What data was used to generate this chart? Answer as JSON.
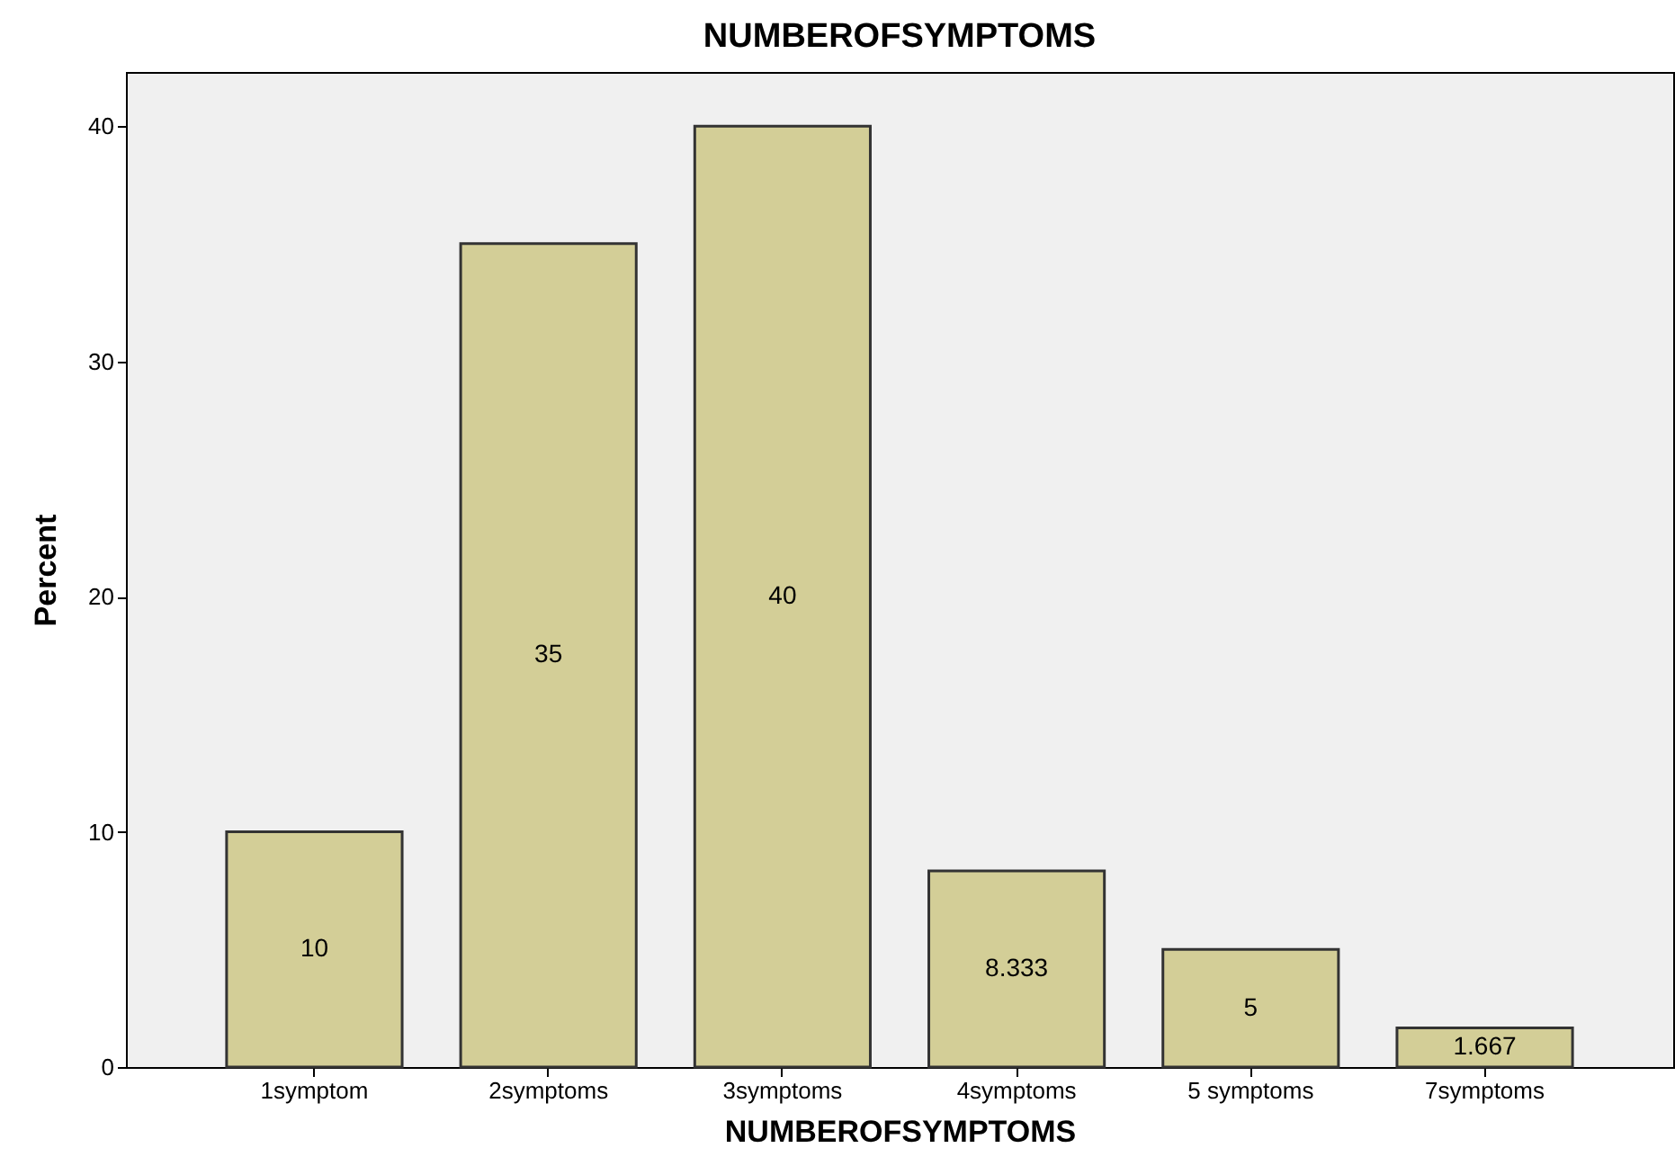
{
  "chart_data": {
    "type": "bar",
    "title": "NUMBEROFSYMPTOMS",
    "xlabel": "NUMBEROFSYMPTOMS",
    "ylabel": "Percent",
    "categories": [
      "1symptom",
      "2symptoms",
      "3symptoms",
      "4symptoms",
      "5 symptoms",
      "7symptoms"
    ],
    "values": [
      10,
      35,
      40,
      8.333,
      5,
      1.667
    ],
    "color": "#d3ce97",
    "ylim": [
      0,
      42.3
    ],
    "yticks": [
      0,
      10,
      20,
      30,
      40
    ],
    "grid": false,
    "data_labels": true
  }
}
